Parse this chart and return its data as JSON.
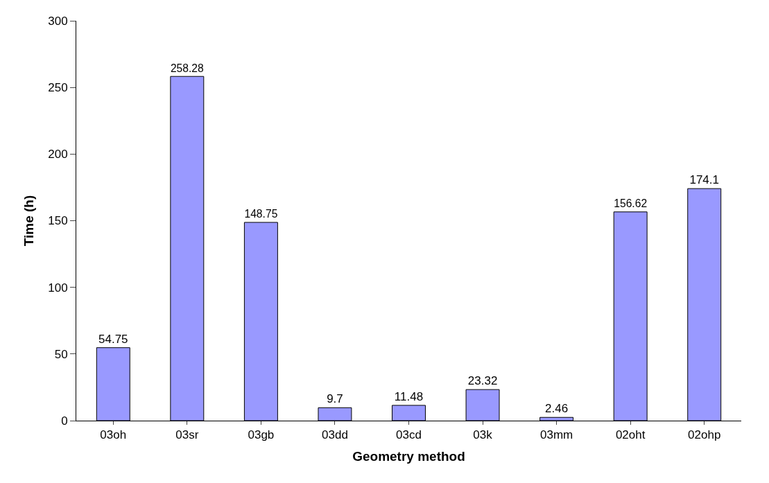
{
  "chart_data": {
    "type": "bar",
    "xlabel": "Geometry method",
    "ylabel": "Time (h)",
    "categories": [
      "03oh",
      "03sr",
      "03gb",
      "03dd",
      "03cd",
      "03k",
      "03mm",
      "02oht",
      "02ohp"
    ],
    "values": [
      54.75,
      258.28,
      148.75,
      9.7,
      11.48,
      23.32,
      2.46,
      156.62,
      174.1
    ],
    "color": "#9999ff",
    "ylim": [
      0,
      300
    ],
    "yticks": [
      0,
      50,
      100,
      150,
      200,
      250,
      300
    ],
    "data_labels": true,
    "grid": false,
    "legend": false
  }
}
